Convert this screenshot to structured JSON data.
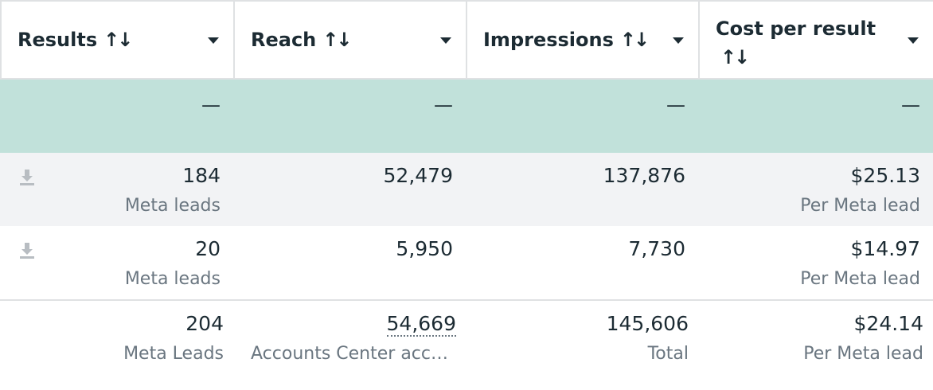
{
  "header": {
    "columns": [
      {
        "label": "Results",
        "sort_icon": "↑↓"
      },
      {
        "label": "Reach",
        "sort_icon": "↑↓"
      },
      {
        "label": "Impressions",
        "sort_icon": "↑↓"
      },
      {
        "label": "Cost per result",
        "sort_icon": "↑↓"
      }
    ]
  },
  "summary_band": {
    "values": [
      "—",
      "—",
      "—",
      "—"
    ]
  },
  "rows": [
    {
      "results": "184",
      "results_sub": "Meta leads",
      "reach": "52,479",
      "impressions": "137,876",
      "cost": "$25.13",
      "cost_sub": "Per Meta lead",
      "icon": "download-icon"
    },
    {
      "results": "20",
      "results_sub": "Meta leads",
      "reach": "5,950",
      "impressions": "7,730",
      "cost": "$14.97",
      "cost_sub": "Per Meta lead",
      "icon": "download-icon"
    }
  ],
  "totals": {
    "results": "204",
    "results_sub": "Meta Leads",
    "reach": "54,669",
    "reach_sub": "Accounts Center acco…",
    "impressions": "145,606",
    "impressions_sub": "Total",
    "cost": "$24.14",
    "cost_sub": "Per Meta lead"
  },
  "colors": {
    "band": "#c1e1da",
    "shaded_row": "#f2f3f5",
    "text": "#1c2b33",
    "muted": "#6a7680"
  }
}
